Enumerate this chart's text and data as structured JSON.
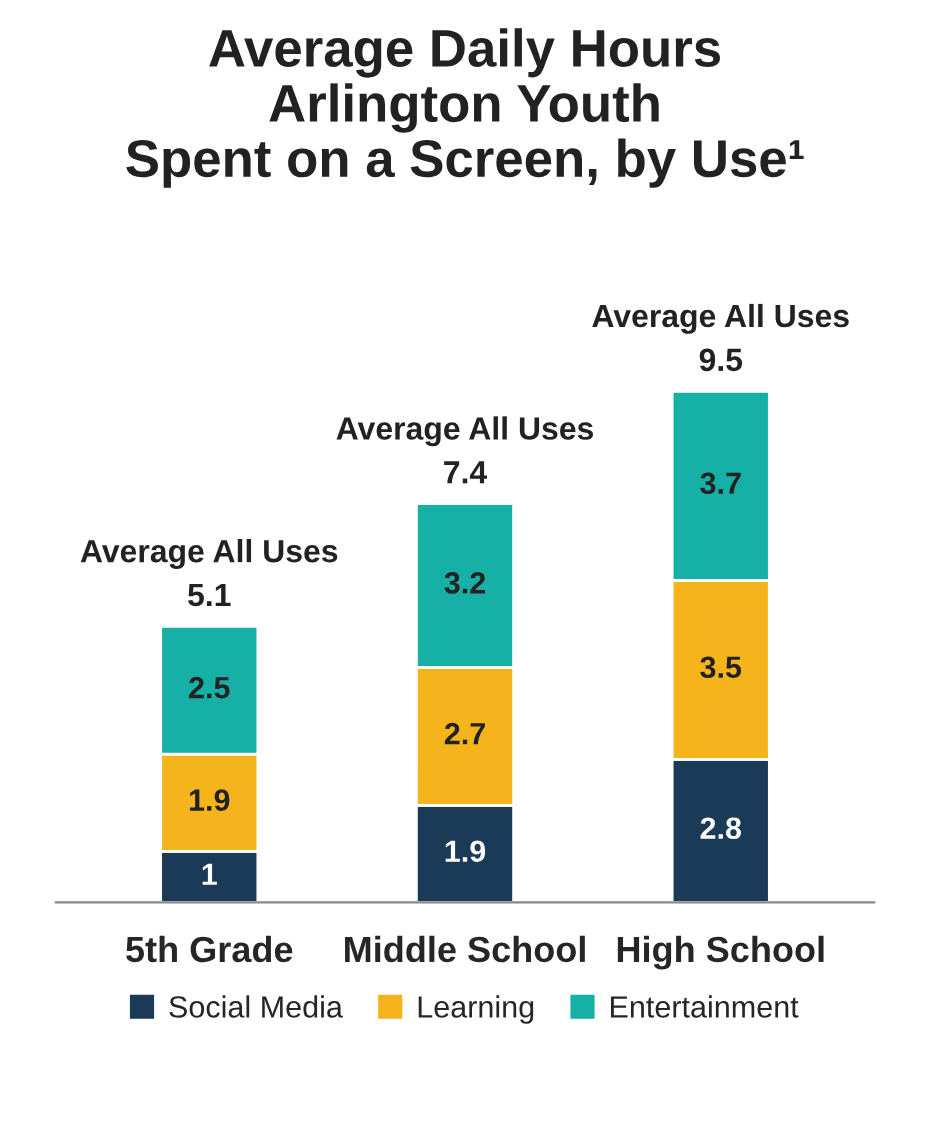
{
  "chart_data": {
    "type": "bar",
    "title": "Average Daily Hours\nArlington Youth\nSpent on a Screen, by Use¹",
    "categories": [
      "5th Grade",
      "Middle School",
      "High School"
    ],
    "series": [
      {
        "name": "Social Media",
        "color": "#1b3a57",
        "values": [
          1,
          1.9,
          2.8
        ]
      },
      {
        "name": "Learning",
        "color": "#f5b41c",
        "values": [
          1.9,
          2.7,
          3.5
        ]
      },
      {
        "name": "Entertainment",
        "color": "#17b0a7",
        "values": [
          2.5,
          3.2,
          3.7
        ]
      }
    ],
    "stacked": true,
    "data_labels": true,
    "annotations": [
      "Average All Uses\n5.1",
      "Average All Uses\n7.4",
      "Average All Uses\n9.5"
    ],
    "legend": "bottom",
    "grid": false
  }
}
